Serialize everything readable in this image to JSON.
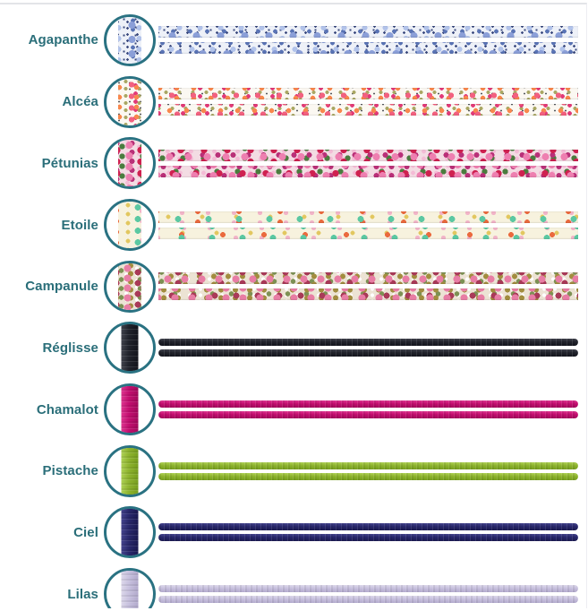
{
  "page": {
    "description": "Cord and ribbon material options list",
    "accent_color": "#2a7282",
    "label_color": "#2a6e79",
    "top_border_color": "#e3e4e8",
    "background": "#ffffff"
  },
  "options": [
    {
      "id": "agapanthe",
      "label": "Agapanthe",
      "type": "ribbon",
      "pattern": "liberty-floral-blue",
      "palette": [
        "#8b9fd8",
        "#b2c3ea",
        "#5a74b5",
        "#3b4a7e",
        "#eef1f8"
      ]
    },
    {
      "id": "alcea",
      "label": "Alcéa",
      "type": "ribbon",
      "pattern": "liberty-floral-pink-orange",
      "palette": [
        "#f2617f",
        "#f8884e",
        "#e23a78",
        "#a9a763",
        "#fbf8f2"
      ]
    },
    {
      "id": "petunias",
      "label": "Pétunias",
      "type": "ribbon",
      "pattern": "liberty-floral-pink-green",
      "palette": [
        "#ee7fb0",
        "#cf2150",
        "#b93078",
        "#4a7c3e",
        "#f3dce3"
      ]
    },
    {
      "id": "etoile",
      "label": "Etoile",
      "type": "ribbon",
      "pattern": "stars-on-cream",
      "palette": [
        "#5bc8a2",
        "#ea6a3e",
        "#f2b4c8",
        "#e2c75f",
        "#f7f2de"
      ]
    },
    {
      "id": "campanule",
      "label": "Campanule",
      "type": "ribbon",
      "pattern": "liberty-floral-pink-olive",
      "palette": [
        "#e87da4",
        "#a93a58",
        "#a28d3f",
        "#7d9154",
        "#ece3d4"
      ]
    },
    {
      "id": "reglisse",
      "label": "Réglisse",
      "type": "cord",
      "color": "#20222b"
    },
    {
      "id": "chamalot",
      "label": "Chamalot",
      "type": "cord",
      "color": "#c30d6f"
    },
    {
      "id": "pistache",
      "label": "Pistache",
      "type": "cord",
      "color": "#8db32d"
    },
    {
      "id": "ciel",
      "label": "Ciel",
      "type": "cord",
      "color": "#28276b"
    },
    {
      "id": "lilas",
      "label": "Lilas",
      "type": "cord",
      "color": "#c7c0de"
    }
  ]
}
